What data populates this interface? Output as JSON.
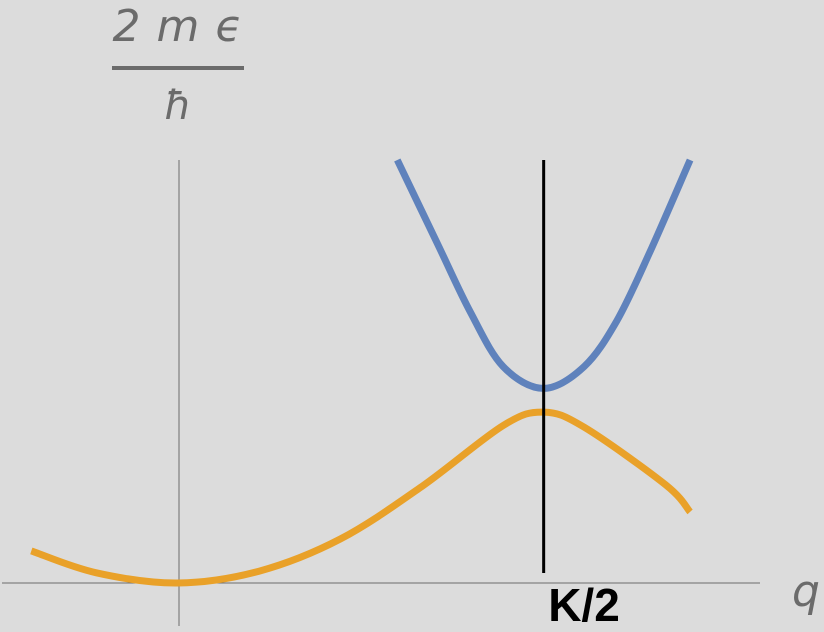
{
  "chart_data": {
    "type": "line",
    "ylabel": {
      "numerator": "2 m ϵ",
      "denominator": "ħ"
    },
    "xlabel": "q",
    "xlim": [
      -1.0,
      3.5
    ],
    "ylim": [
      0,
      2.5
    ],
    "grid": false,
    "vertical_marker": {
      "x": 2.25,
      "label": "K/2",
      "color": "#000000"
    },
    "series": [
      {
        "color": "#e9a129",
        "x": [
          -0.9,
          -0.5,
          0.0,
          0.5,
          1.0,
          1.5,
          2.0,
          2.25,
          2.5,
          3.0,
          3.15
        ],
        "y": [
          0.19,
          0.06,
          0.0,
          0.07,
          0.26,
          0.57,
          0.93,
          1.01,
          0.92,
          0.58,
          0.42
        ]
      },
      {
        "color": "#5f82bc",
        "x": [
          1.35,
          1.6,
          1.8,
          2.0,
          2.25,
          2.5,
          2.7,
          2.9,
          3.15
        ],
        "y": [
          2.5,
          2.0,
          1.6,
          1.28,
          1.15,
          1.28,
          1.55,
          1.95,
          2.5
        ]
      }
    ],
    "colors": {
      "background": "#dcdcdc",
      "axis": "#6b6b6b"
    }
  }
}
